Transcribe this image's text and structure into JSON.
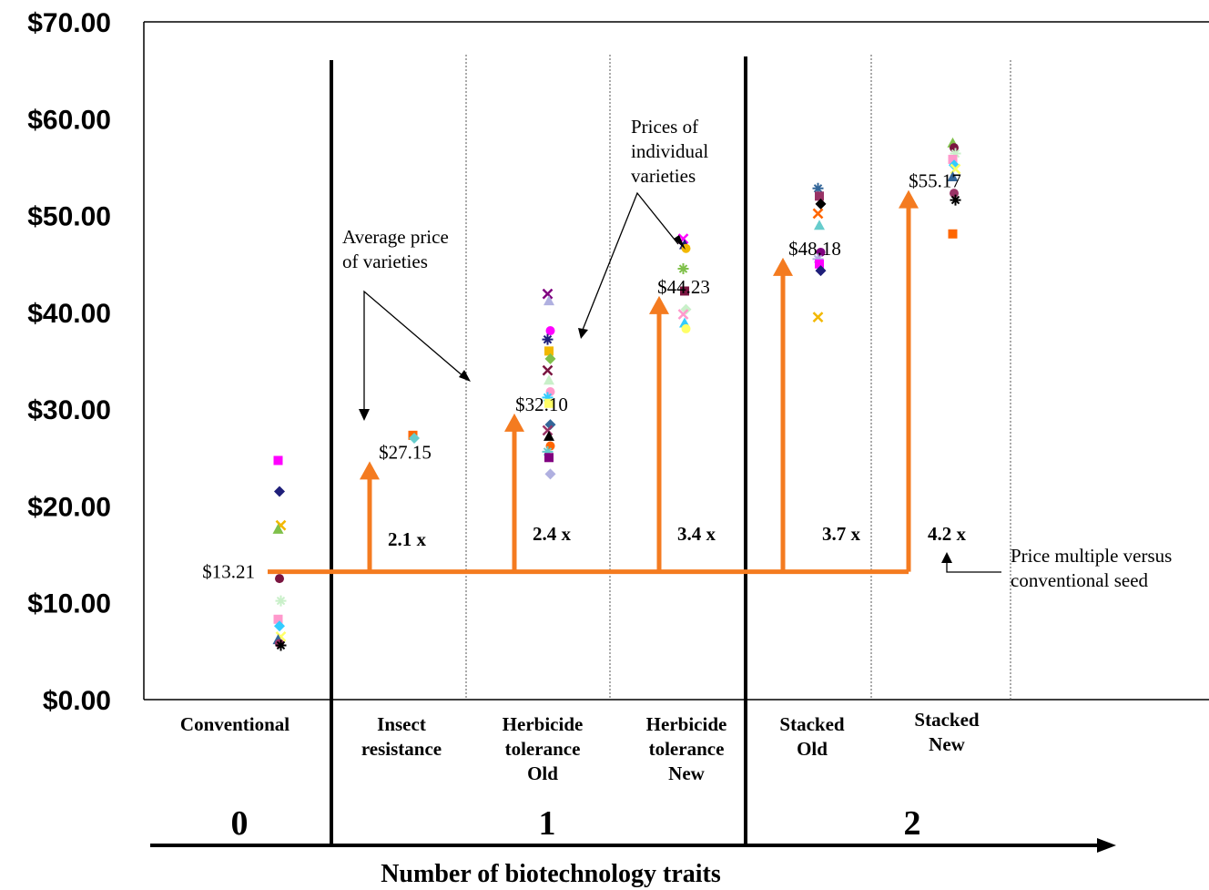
{
  "chart_data": {
    "type": "scatter",
    "title": "",
    "xlabel": "Number of biotechnology traits",
    "ylabel": "",
    "ylim": [
      0,
      70
    ],
    "y_ticks": [
      "$0.00",
      "$10.00",
      "$20.00",
      "$30.00",
      "$40.00",
      "$50.00",
      "$60.00",
      "$70.00"
    ],
    "y_tick_values": [
      0,
      10,
      20,
      30,
      40,
      50,
      60,
      70
    ],
    "grid": false,
    "categories": [
      {
        "label_lines": [
          "Conventional"
        ],
        "average": 13.21,
        "average_label": "$13.21",
        "multiple_label": ""
      },
      {
        "label_lines": [
          "Insect",
          "resistance"
        ],
        "average": 27.15,
        "average_label": "$27.15",
        "multiple_label": "2.1 x"
      },
      {
        "label_lines": [
          "Herbicide",
          "tolerance",
          "Old"
        ],
        "average": 32.1,
        "average_label": "$32.10",
        "multiple_label": "2.4 x"
      },
      {
        "label_lines": [
          "Herbicide",
          "tolerance",
          "New"
        ],
        "average": 44.23,
        "average_label": "$44.23",
        "multiple_label": "3.4 x"
      },
      {
        "label_lines": [
          "Stacked",
          "Old"
        ],
        "average": 48.18,
        "average_label": "$48.18",
        "multiple_label": "3.7 x"
      },
      {
        "label_lines": [
          "Stacked",
          "New"
        ],
        "average": 55.17,
        "average_label": "$55.17",
        "multiple_label": "4.2 x"
      }
    ],
    "trait_groups": [
      {
        "label": "0",
        "categories": [
          0
        ]
      },
      {
        "label": "1",
        "categories": [
          1,
          2,
          3
        ]
      },
      {
        "label": "2",
        "categories": [
          4,
          5
        ]
      }
    ],
    "variety_prices": [
      [
        24.7,
        21.5,
        18.0,
        17.6,
        12.5,
        10.2,
        8.3,
        7.6,
        6.5,
        6.2,
        5.8,
        5.6
      ],
      [
        27.3,
        27.0
      ],
      [
        41.9,
        41.2,
        38.1,
        37.2,
        36.0,
        35.2,
        34.0,
        33.0,
        31.8,
        31.2,
        30.6,
        28.4,
        27.8,
        27.2,
        26.2,
        25.6,
        25.0,
        23.3
      ],
      [
        47.6,
        47.0,
        46.6,
        44.5,
        42.2,
        40.3,
        39.8,
        38.9,
        38.3
      ],
      [
        52.8,
        52.0,
        51.2,
        50.2,
        49.0,
        46.2,
        45.5,
        45.0,
        44.3,
        39.5
      ],
      [
        57.5,
        57.0,
        56.4,
        55.8,
        55.2,
        54.8,
        54.0,
        52.3,
        51.6,
        48.1
      ]
    ],
    "annotations": {
      "average_note": [
        "Average price",
        "of varieties"
      ],
      "individual_note": [
        "Prices of",
        "individual",
        "varieties"
      ],
      "multiple_note": [
        "Price multiple versus",
        "conventional seed"
      ]
    },
    "colors": {
      "arrow": "#f47b20",
      "markers": [
        "#ff00ff",
        "#1f1f7a",
        "#f2b800",
        "#7fc04a",
        "#7a1540",
        "#c9f0c9",
        "#ff99cc",
        "#33ccff",
        "#ffff66",
        "#336699",
        "#993366",
        "#000000",
        "#ff6600",
        "#66cccc",
        "#800080",
        "#b0b0e0"
      ]
    }
  }
}
